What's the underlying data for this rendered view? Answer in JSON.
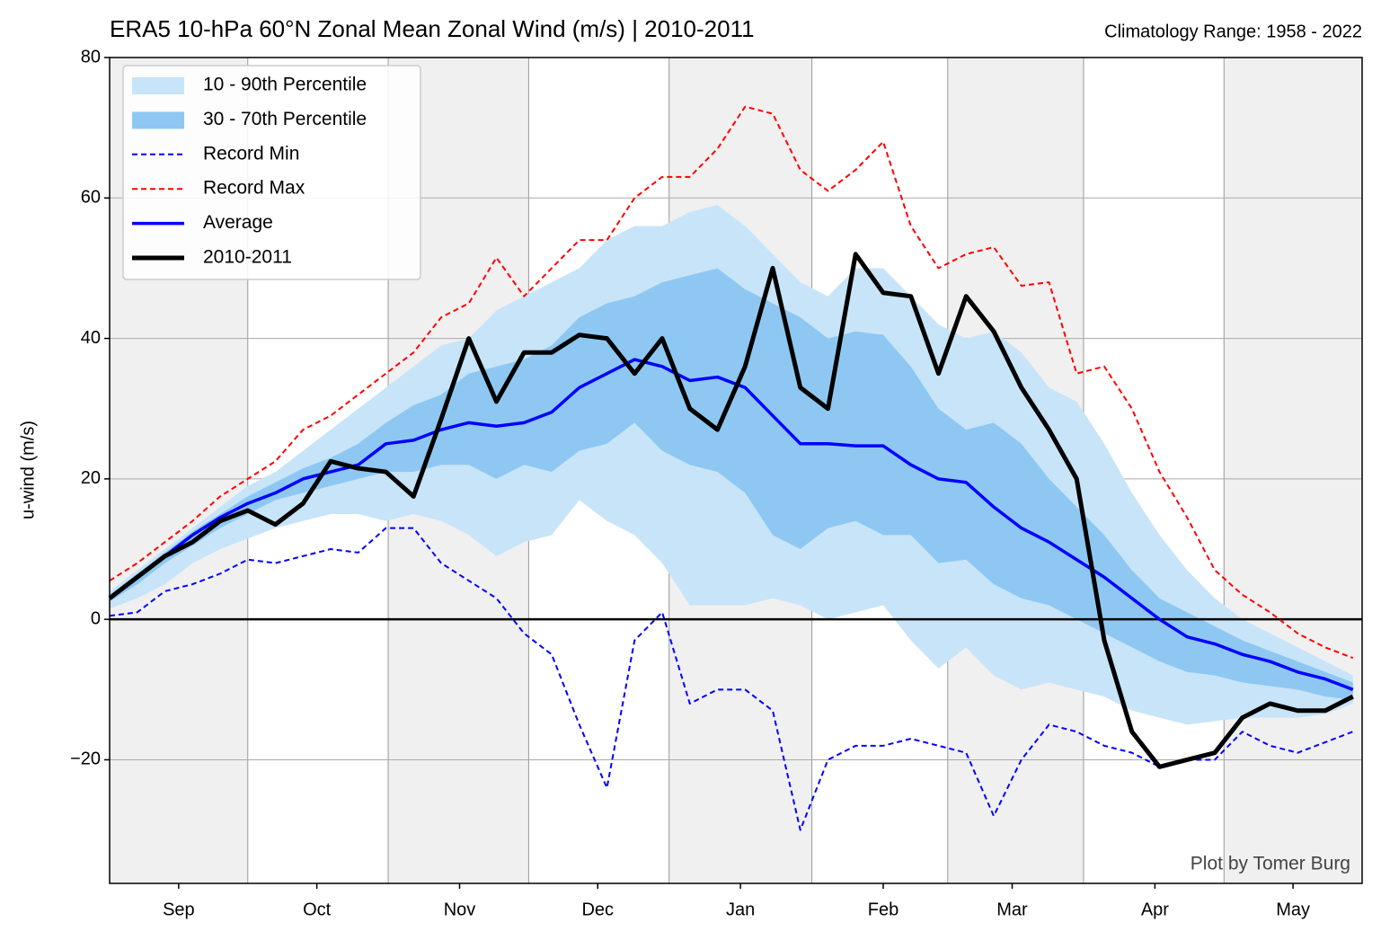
{
  "chart_data": {
    "type": "line",
    "title": "ERA5 10-hPa 60°N Zonal Mean Zonal Wind (m/s) | 2010-2011",
    "subtitle": "Climatology Range: 1958 - 2022",
    "y_label": "u-wind (m/s)",
    "annotation": "Plot by Tomer Burg",
    "x": [
      0,
      6,
      12,
      18,
      24,
      30,
      36,
      42,
      48,
      54,
      60,
      66,
      72,
      78,
      84,
      90,
      96,
      102,
      108,
      114,
      120,
      126,
      132,
      138,
      144,
      150,
      156,
      162,
      168,
      174,
      180,
      186,
      192,
      198,
      204,
      210,
      216,
      222,
      228,
      234,
      240,
      246,
      252,
      258,
      264,
      270
    ],
    "xlim": [
      0,
      272
    ],
    "xticks": [
      {
        "value": 15,
        "label": "Sep"
      },
      {
        "value": 45,
        "label": "Oct"
      },
      {
        "value": 76,
        "label": "Nov"
      },
      {
        "value": 106,
        "label": "Dec"
      },
      {
        "value": 137,
        "label": "Jan"
      },
      {
        "value": 168,
        "label": "Feb"
      },
      {
        "value": 196,
        "label": "Mar"
      },
      {
        "value": 227,
        "label": "Apr"
      },
      {
        "value": 257,
        "label": "May"
      }
    ],
    "ylim": [
      -37.6,
      80
    ],
    "yticks": [
      {
        "value": -20,
        "label": "−20"
      },
      0,
      20,
      40,
      60,
      80
    ],
    "grid": true,
    "zero_line": true,
    "legend": "upper left",
    "bands": [
      {
        "name": "10 - 90th Percentile",
        "color": "#c8e4f8",
        "lower": [
          1.5,
          3,
          5,
          8,
          10,
          11.5,
          13,
          14,
          15,
          15,
          14,
          15,
          14,
          12,
          9,
          11,
          12,
          17,
          14,
          12,
          8,
          2,
          2,
          2,
          3,
          2,
          0,
          1,
          2,
          -3,
          -7,
          -4,
          -8,
          -10,
          -9,
          -10,
          -11,
          -13,
          -14,
          -15,
          -14.5,
          -14,
          -14,
          -14,
          -13.5,
          -12
        ],
        "upper": [
          4,
          7,
          10,
          13,
          16,
          19,
          21,
          24,
          27,
          30,
          33,
          36,
          39,
          40,
          44,
          46,
          48,
          50,
          54,
          56,
          56,
          58,
          59,
          56,
          52,
          48,
          46,
          50,
          50,
          46,
          42,
          40,
          41,
          38,
          33,
          31,
          25,
          18,
          12,
          7,
          3,
          0,
          -2,
          -4,
          -6,
          -8
        ]
      },
      {
        "name": "30 - 70th Percentile",
        "color": "#8ec8f2",
        "lower": [
          2.5,
          5,
          8,
          10.5,
          13,
          15,
          17,
          18,
          19,
          20,
          21,
          21,
          22,
          22,
          20,
          22,
          21,
          24,
          25,
          28,
          24,
          22,
          21,
          18,
          12,
          10,
          13,
          14,
          12,
          12,
          8,
          8.5,
          5,
          3,
          2,
          0,
          -2,
          -4,
          -6,
          -7.5,
          -8,
          -9,
          -9.5,
          -10,
          -11,
          -11.5
        ],
        "upper": [
          3.5,
          6.5,
          9.5,
          12.5,
          15,
          17.5,
          19.5,
          21.5,
          23,
          25,
          28,
          30.5,
          32,
          35,
          36,
          37,
          39,
          43,
          45,
          46,
          48,
          49,
          50,
          47,
          45,
          43,
          40,
          41,
          40.5,
          36,
          30,
          27,
          28,
          25,
          20,
          16,
          12,
          7,
          3,
          1,
          -1,
          -3,
          -4.5,
          -6,
          -7.5,
          -9
        ]
      }
    ],
    "series": [
      {
        "name": "Record Min",
        "color": "#0000ff",
        "style": "dashed",
        "width": 2,
        "values": [
          0.5,
          1,
          4,
          5,
          6.5,
          8.5,
          8,
          9,
          10,
          9.5,
          13,
          13,
          8,
          5.5,
          3,
          -2,
          -5,
          -15,
          -24,
          -3,
          1,
          -12,
          -10,
          -10,
          -13,
          -30,
          -20,
          -18,
          -18,
          -17,
          -18,
          -19,
          -28,
          -20,
          -15,
          -16,
          -18,
          -19,
          -21,
          -20,
          -20,
          -16,
          -18,
          -19,
          -17.5,
          -16
        ]
      },
      {
        "name": "Record Max",
        "color": "#ff0000",
        "style": "dashed",
        "width": 2,
        "values": [
          5.5,
          8,
          11,
          14,
          17.5,
          20,
          22.5,
          27,
          29,
          32,
          35,
          38,
          43,
          45,
          51.5,
          46,
          50,
          54,
          54,
          60,
          63,
          63,
          67,
          73,
          72,
          64,
          61,
          64,
          68,
          56,
          50,
          52,
          53,
          47.5,
          48,
          35,
          36,
          30,
          21,
          14.5,
          7,
          3.5,
          1,
          -2,
          -4,
          -5.5
        ]
      },
      {
        "name": "Average",
        "color": "#0000ff",
        "style": "solid",
        "width": 3.5,
        "values": [
          3,
          6,
          9,
          12,
          14.5,
          16.5,
          18,
          20,
          21,
          22,
          25,
          25.5,
          27,
          28,
          27.5,
          28,
          29.5,
          33,
          35,
          37,
          36,
          34,
          34.5,
          33,
          29,
          25,
          25,
          24.7,
          24.7,
          22,
          20,
          19.5,
          16,
          13,
          11,
          8.5,
          6,
          3,
          0,
          -2.5,
          -3.5,
          -5,
          -6,
          -7.5,
          -8.5,
          -10
        ]
      },
      {
        "name": "2010-2011",
        "color": "#000000",
        "style": "solid",
        "width": 5,
        "values": [
          3,
          6,
          9,
          11,
          14,
          15.5,
          13.5,
          16.5,
          22.5,
          21.5,
          21,
          17.5,
          28.5,
          40,
          31,
          38,
          38,
          40.5,
          40,
          35,
          40,
          30,
          27,
          36,
          50,
          33,
          30,
          52,
          46.5,
          46,
          35,
          46,
          41,
          33,
          27,
          20,
          -3,
          -16,
          -21,
          -20,
          -19,
          -14,
          -12,
          -13,
          -13,
          -11
        ]
      }
    ]
  }
}
